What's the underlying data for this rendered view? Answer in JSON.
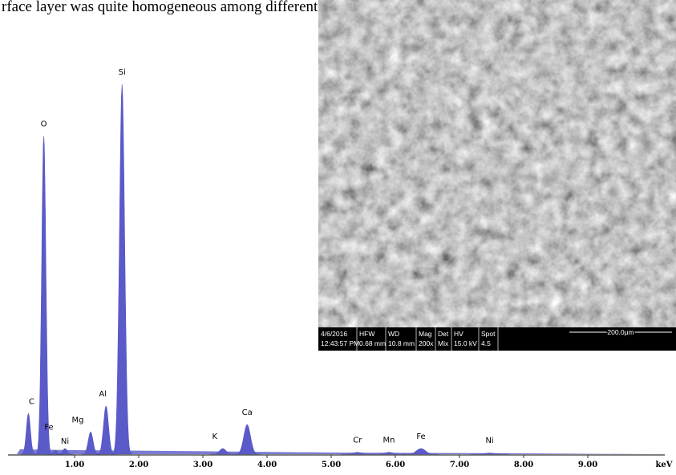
{
  "text_above": "rface layer was quite homogeneous among different points.",
  "chart_data": {
    "type": "spectrum",
    "x_label": "keV",
    "color": "#5a5ac8",
    "xlim": [
      0,
      10.2
    ],
    "xticks": [
      {
        "value": 1,
        "label": "1.00"
      },
      {
        "value": 2,
        "label": "2.00"
      },
      {
        "value": 3,
        "label": "3.00"
      },
      {
        "value": 4,
        "label": "4.00"
      },
      {
        "value": 5,
        "label": "5.00"
      },
      {
        "value": 6,
        "label": "6.00"
      },
      {
        "value": 7,
        "label": "7.00"
      },
      {
        "value": 8,
        "label": "8.00"
      },
      {
        "value": 9,
        "label": "9.00"
      }
    ],
    "peaks": [
      {
        "label": "C",
        "x": 0.28,
        "height": 11
      },
      {
        "label": "O",
        "x": 0.52,
        "height": 86
      },
      {
        "label": "Fe",
        "x": 0.7,
        "height": 1
      },
      {
        "label": "Ni",
        "x": 0.85,
        "height": 1.5
      },
      {
        "label": "Mg",
        "x": 1.25,
        "height": 6
      },
      {
        "label": "Al",
        "x": 1.49,
        "height": 13
      },
      {
        "label": "Si",
        "x": 1.74,
        "height": 100
      },
      {
        "label": "K",
        "x": 3.31,
        "height": 1.5
      },
      {
        "label": "Ca",
        "x": 3.69,
        "height": 8
      },
      {
        "label": "Cr",
        "x": 5.41,
        "height": 0.5
      },
      {
        "label": "Mn",
        "x": 5.9,
        "height": 0.5
      },
      {
        "label": "Fe",
        "x": 6.4,
        "height": 1.5
      },
      {
        "label": "Ni",
        "x": 7.47,
        "height": 0.3
      }
    ]
  },
  "sem_image": {
    "info_bar": [
      [
        "4/6/2016",
        "12:43:57 PM"
      ],
      [
        "HFW",
        "0.68 mm"
      ],
      [
        "WD",
        "10.8 mm"
      ],
      [
        "Mag",
        "200x"
      ],
      [
        "Det",
        "Mix"
      ],
      [
        "HV",
        "15.0 kV"
      ],
      [
        "Spot",
        "4.5"
      ]
    ],
    "scale_bar": "200.0µm"
  }
}
